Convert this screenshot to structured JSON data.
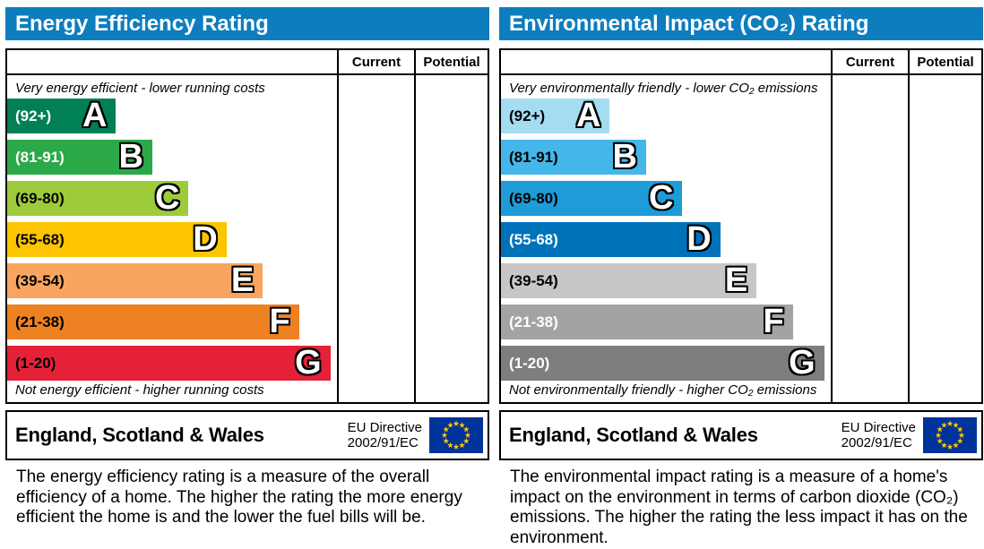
{
  "style": {
    "header_bg": "#0e7dbe",
    "header_text": "#ffffff",
    "flag_bg": "#003399",
    "flag_star": "#ffcc00",
    "border_color": "#000000"
  },
  "chart_data": [
    {
      "type": "bar",
      "title": "Energy Efficiency Rating",
      "columns": [
        "Current",
        "Potential"
      ],
      "current_value": null,
      "potential_value": null,
      "top_caption": "Very energy efficient - lower running costs",
      "bottom_caption": "Not energy efficient - higher running costs",
      "bands": [
        {
          "grade": "A",
          "range": "(92+)",
          "range_min": 92,
          "range_max": 100,
          "width_pct": 33,
          "color": "#008054",
          "label_color": "#ffffff"
        },
        {
          "grade": "B",
          "range": "(81-91)",
          "range_min": 81,
          "range_max": 91,
          "width_pct": 44,
          "color": "#2ba949",
          "label_color": "#ffffff"
        },
        {
          "grade": "C",
          "range": "(69-80)",
          "range_min": 69,
          "range_max": 80,
          "width_pct": 55,
          "color": "#9ecb3b",
          "label_color": "#000000"
        },
        {
          "grade": "D",
          "range": "(55-68)",
          "range_min": 55,
          "range_max": 68,
          "width_pct": 66.5,
          "color": "#fdc500",
          "label_color": "#000000"
        },
        {
          "grade": "E",
          "range": "(39-54)",
          "range_min": 39,
          "range_max": 54,
          "width_pct": 77.5,
          "color": "#f9a55f",
          "label_color": "#000000"
        },
        {
          "grade": "F",
          "range": "(21-38)",
          "range_min": 21,
          "range_max": 38,
          "width_pct": 88.5,
          "color": "#ee8122",
          "label_color": "#000000"
        },
        {
          "grade": "G",
          "range": "(1-20)",
          "range_min": 1,
          "range_max": 20,
          "width_pct": 98,
          "color": "#e52138",
          "label_color": "#000000"
        }
      ],
      "footer": {
        "region": "England, Scotland & Wales",
        "directive": [
          "EU Directive",
          "2002/91/EC"
        ]
      },
      "description": "The energy efficiency rating is a measure of the overall efficiency of a home. The higher the rating the more energy efficient the home is and the lower the fuel bills will be."
    },
    {
      "type": "bar",
      "title": "Environmental Impact (CO₂) Rating",
      "columns": [
        "Current",
        "Potential"
      ],
      "current_value": null,
      "potential_value": null,
      "top_caption": "Very environmentally friendly - lower CO₂ emissions",
      "bottom_caption": "Not environmentally friendly - higher CO₂ emissions",
      "bands": [
        {
          "grade": "A",
          "range": "(92+)",
          "range_min": 92,
          "range_max": 100,
          "width_pct": 33,
          "color": "#a4dcf2",
          "label_color": "#000000"
        },
        {
          "grade": "B",
          "range": "(81-91)",
          "range_min": 81,
          "range_max": 91,
          "width_pct": 44,
          "color": "#45b6e9",
          "label_color": "#000000"
        },
        {
          "grade": "C",
          "range": "(69-80)",
          "range_min": 69,
          "range_max": 80,
          "width_pct": 55,
          "color": "#1e9cd8",
          "label_color": "#000000"
        },
        {
          "grade": "D",
          "range": "(55-68)",
          "range_min": 55,
          "range_max": 68,
          "width_pct": 66.5,
          "color": "#0072b9",
          "label_color": "#ffffff"
        },
        {
          "grade": "E",
          "range": "(39-54)",
          "range_min": 39,
          "range_max": 54,
          "width_pct": 77.5,
          "color": "#c7c7c7",
          "label_color": "#000000"
        },
        {
          "grade": "F",
          "range": "(21-38)",
          "range_min": 21,
          "range_max": 38,
          "width_pct": 88.5,
          "color": "#a3a3a3",
          "label_color": "#ffffff"
        },
        {
          "grade": "G",
          "range": "(1-20)",
          "range_min": 1,
          "range_max": 20,
          "width_pct": 98,
          "color": "#7e7e7e",
          "label_color": "#ffffff"
        }
      ],
      "footer": {
        "region": "England, Scotland & Wales",
        "directive": [
          "EU Directive",
          "2002/91/EC"
        ]
      },
      "description": "The environmental impact rating is a measure of a home's impact on the environment in terms of carbon dioxide (CO₂) emissions. The higher the rating the less impact it has on the environment."
    }
  ]
}
